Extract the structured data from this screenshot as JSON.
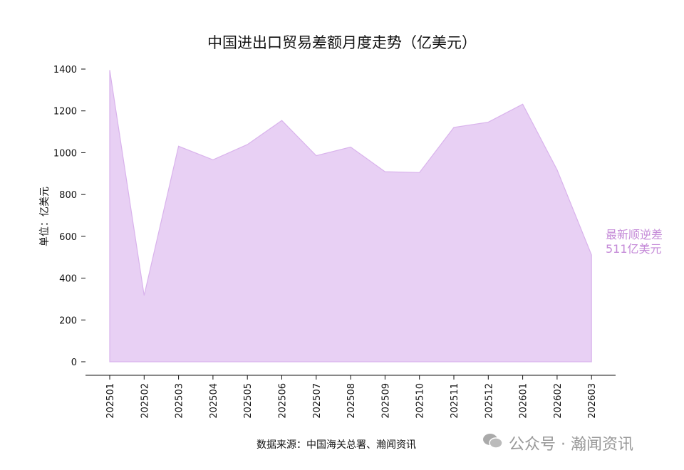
{
  "chart_data": {
    "type": "area",
    "title": "中国进出口贸易差额月度走势（亿美元）",
    "xlabel": "",
    "ylabel": "单位：亿美元",
    "categories": [
      "202501",
      "202502",
      "202503",
      "202504",
      "202505",
      "202506",
      "202507",
      "202508",
      "202509",
      "202510",
      "202511",
      "202512",
      "202601",
      "202602",
      "202603"
    ],
    "series": [
      {
        "name": "贸易差额",
        "values": [
          1395,
          317,
          1031,
          966,
          1039,
          1154,
          986,
          1027,
          909,
          905,
          1121,
          1146,
          1232,
          918,
          511
        ]
      }
    ],
    "ylim": [
      0,
      1400
    ],
    "yticks": [
      0,
      200,
      400,
      600,
      800,
      1000,
      1200,
      1400
    ],
    "grid": false,
    "fill_color": "#e8d0f4",
    "line_color": "#d9b3ec",
    "annotation": {
      "line1": "最新顺逆差",
      "line2": "511亿美元",
      "color": "#c58bd8"
    }
  },
  "source": "数据来源：中国海关总署、瀚闻资讯",
  "watermark": "公众号 · 瀚闻资讯"
}
